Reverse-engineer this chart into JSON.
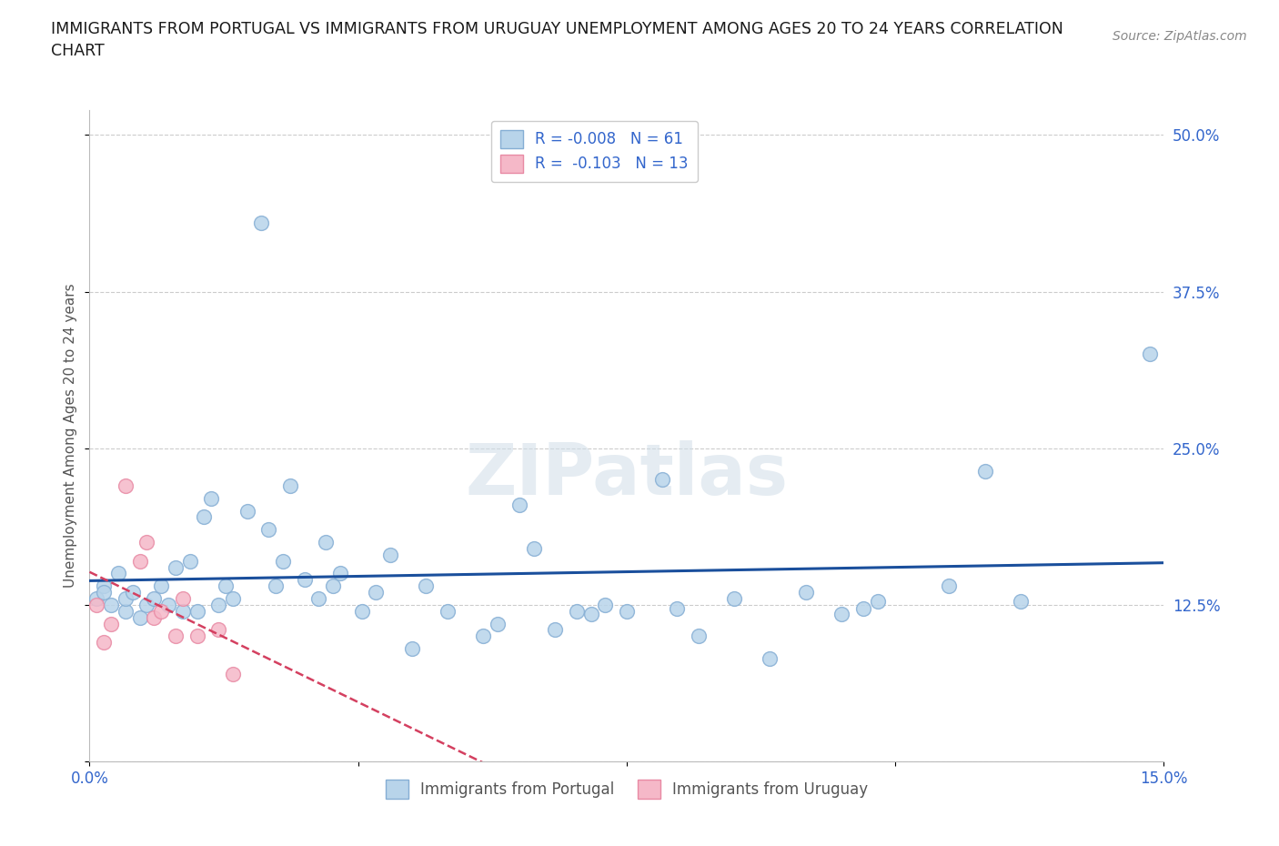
{
  "title": "IMMIGRANTS FROM PORTUGAL VS IMMIGRANTS FROM URUGUAY UNEMPLOYMENT AMONG AGES 20 TO 24 YEARS CORRELATION\nCHART",
  "source_text": "Source: ZipAtlas.com",
  "ylabel": "Unemployment Among Ages 20 to 24 years",
  "xlim": [
    0.0,
    0.15
  ],
  "ylim": [
    0.0,
    0.52
  ],
  "yticks": [
    0.0,
    0.125,
    0.25,
    0.375,
    0.5
  ],
  "ytick_labels": [
    "",
    "12.5%",
    "25.0%",
    "37.5%",
    "50.0%"
  ],
  "xticks": [
    0.0,
    0.0375,
    0.075,
    0.1125,
    0.15
  ],
  "xtick_labels": [
    "0.0%",
    "",
    "",
    "",
    "15.0%"
  ],
  "portugal_color": "#b8d4ea",
  "uruguay_color": "#f5b8c8",
  "portugal_edge": "#85aed4",
  "uruguay_edge": "#e88aa4",
  "trend_portugal_color": "#1a4f9c",
  "trend_uruguay_color": "#d44060",
  "R_portugal": -0.008,
  "N_portugal": 61,
  "R_uruguay": -0.103,
  "N_uruguay": 13,
  "portugal_x": [
    0.001,
    0.002,
    0.002,
    0.003,
    0.004,
    0.005,
    0.005,
    0.006,
    0.007,
    0.008,
    0.009,
    0.01,
    0.011,
    0.012,
    0.013,
    0.014,
    0.015,
    0.016,
    0.017,
    0.018,
    0.019,
    0.02,
    0.022,
    0.024,
    0.025,
    0.026,
    0.027,
    0.028,
    0.03,
    0.032,
    0.033,
    0.034,
    0.035,
    0.038,
    0.04,
    0.042,
    0.045,
    0.047,
    0.05,
    0.055,
    0.057,
    0.06,
    0.062,
    0.065,
    0.068,
    0.07,
    0.072,
    0.075,
    0.08,
    0.082,
    0.085,
    0.09,
    0.095,
    0.1,
    0.105,
    0.108,
    0.11,
    0.12,
    0.125,
    0.13,
    0.148
  ],
  "portugal_y": [
    0.13,
    0.14,
    0.135,
    0.125,
    0.15,
    0.12,
    0.13,
    0.135,
    0.115,
    0.125,
    0.13,
    0.14,
    0.125,
    0.155,
    0.12,
    0.16,
    0.12,
    0.195,
    0.21,
    0.125,
    0.14,
    0.13,
    0.2,
    0.43,
    0.185,
    0.14,
    0.16,
    0.22,
    0.145,
    0.13,
    0.175,
    0.14,
    0.15,
    0.12,
    0.135,
    0.165,
    0.09,
    0.14,
    0.12,
    0.1,
    0.11,
    0.205,
    0.17,
    0.105,
    0.12,
    0.118,
    0.125,
    0.12,
    0.225,
    0.122,
    0.1,
    0.13,
    0.082,
    0.135,
    0.118,
    0.122,
    0.128,
    0.14,
    0.232,
    0.128,
    0.325
  ],
  "uruguay_x": [
    0.001,
    0.002,
    0.003,
    0.005,
    0.007,
    0.008,
    0.009,
    0.01,
    0.012,
    0.013,
    0.015,
    0.018,
    0.02
  ],
  "uruguay_y": [
    0.125,
    0.095,
    0.11,
    0.22,
    0.16,
    0.175,
    0.115,
    0.12,
    0.1,
    0.13,
    0.1,
    0.105,
    0.07
  ],
  "watermark": "ZIPatlas",
  "background_color": "#ffffff",
  "grid_color": "#cccccc",
  "legend_items": [
    "Immigrants from Portugal",
    "Immigrants from Uruguay"
  ]
}
